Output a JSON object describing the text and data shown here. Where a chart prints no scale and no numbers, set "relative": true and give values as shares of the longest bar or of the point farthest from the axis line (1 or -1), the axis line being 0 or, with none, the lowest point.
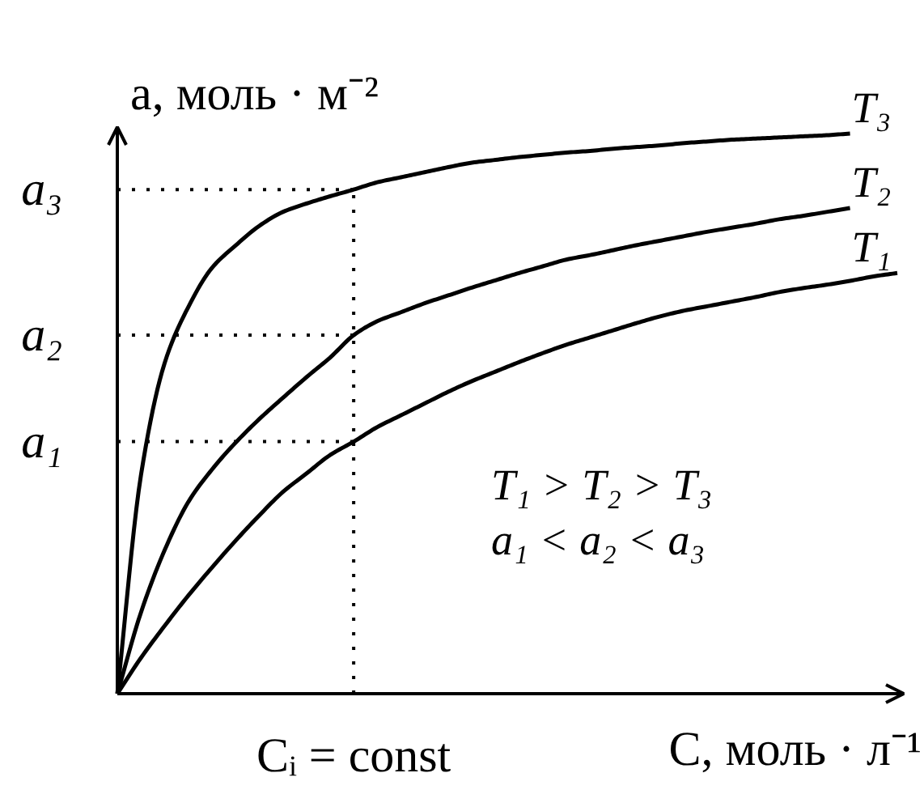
{
  "chart_data": {
    "type": "line",
    "relative": true,
    "xlabel": "C, моль · л⁻¹",
    "ylabel": "a, моль · м⁻²",
    "categories": [
      null,
      null,
      null,
      null,
      null,
      null,
      null,
      null,
      null,
      null,
      null,
      null,
      null,
      null,
      null,
      null,
      null,
      null,
      null,
      null,
      null,
      null,
      null,
      null,
      null,
      null,
      null,
      null,
      null,
      null,
      null,
      null,
      null,
      null
    ],
    "series": [
      {
        "name": "T₃",
        "color": "#000000",
        "values": [
          0,
          0.39,
          0.59,
          0.69,
          0.76,
          0.8,
          0.835,
          0.86,
          0.875,
          0.888,
          0.9,
          0.913,
          0.922,
          0.931,
          0.94,
          0.948,
          0.953,
          0.958,
          0.962,
          0.966,
          0.969,
          0.973,
          0.976,
          0.979,
          0.983,
          0.986,
          0.989,
          0.991,
          0.993,
          0.995,
          0.997,
          1.0,
          null,
          null
        ]
      },
      {
        "name": "T₂",
        "color": "#000000",
        "values": [
          0,
          0.145,
          0.256,
          0.342,
          0.4,
          0.448,
          0.49,
          0.528,
          0.565,
          0.6,
          0.64,
          0.665,
          0.681,
          0.697,
          0.711,
          0.725,
          0.738,
          0.751,
          0.763,
          0.775,
          0.783,
          0.792,
          0.801,
          0.809,
          0.817,
          0.825,
          0.832,
          0.839,
          0.847,
          0.853,
          0.86,
          0.867,
          null,
          null
        ]
      },
      {
        "name": "T₁",
        "color": "#000000",
        "values": [
          0,
          0.064,
          0.121,
          0.175,
          0.225,
          0.273,
          0.318,
          0.36,
          0.393,
          0.426,
          0.45,
          0.476,
          0.497,
          0.518,
          0.539,
          0.558,
          0.575,
          0.592,
          0.608,
          0.623,
          0.636,
          0.649,
          0.662,
          0.674,
          0.684,
          0.692,
          0.7,
          0.708,
          0.717,
          0.724,
          0.73,
          0.737,
          0.745,
          0.751
        ]
      }
    ],
    "ref_lines": [
      {
        "axis": "y",
        "value": 0.9,
        "label": "a₃",
        "line_style": "dotted",
        "color": "#000000"
      },
      {
        "axis": "y",
        "value": 0.64,
        "label": "a₂",
        "line_style": "dotted",
        "color": "#000000"
      },
      {
        "axis": "y",
        "value": 0.45,
        "label": "a₁",
        "line_style": "dotted",
        "color": "#000000"
      }
    ],
    "annotations": [
      "Cᵢ = const",
      "T₁ > T₂ > T₃",
      "a₁ < a₂ < a₃"
    ],
    "line_style": "solid"
  }
}
